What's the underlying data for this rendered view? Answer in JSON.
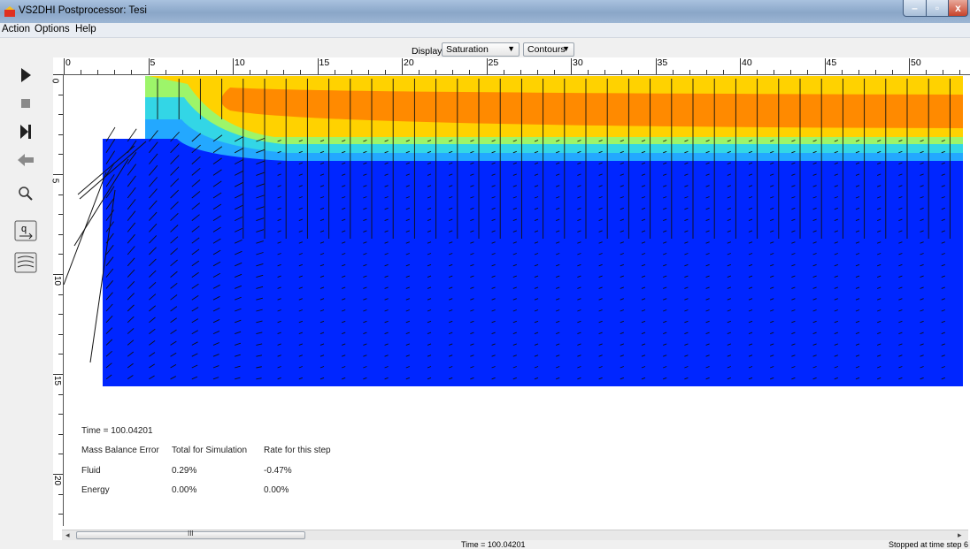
{
  "window": {
    "title": "VS2DHI Postprocessor: Tesi",
    "minimize_glyph": "–",
    "maximize_glyph": "▫",
    "close_glyph": "x"
  },
  "menubar": {
    "items": [
      "Action",
      "Options",
      "Help"
    ]
  },
  "controls": {
    "display_label": "Display:",
    "display_value": "Saturation",
    "mode_value": "Contours"
  },
  "toolbar": {
    "tools": [
      "play-icon",
      "stop-icon",
      "step-forward-icon",
      "rewind-icon",
      "zoom-icon",
      "vector-icon",
      "contour-icon"
    ],
    "colors": {
      "active": "#202020",
      "disabled": "#8a8a8a"
    }
  },
  "ruler": {
    "x_labels": [
      "0",
      "5",
      "10",
      "15",
      "20",
      "25",
      "30",
      "35",
      "40",
      "45",
      "50"
    ],
    "y_labels": [
      "0",
      "5",
      "10",
      "15",
      "20"
    ]
  },
  "plot": {
    "colors": {
      "saturated": "#0026ff",
      "band_orange": "#ff8a00",
      "band_yellow": "#ffd200",
      "band_cyan": "#33d6e6"
    }
  },
  "stats": {
    "time": "Time = 100.04201",
    "header_label": "Mass Balance Error",
    "header_total": "Total for Simulation",
    "header_rate": "Rate for this step",
    "fluid_label": "Fluid",
    "fluid_total": "0.29%",
    "fluid_rate": "-0.47%",
    "energy_label": "Energy",
    "energy_total": "0.00%",
    "energy_rate": "0.00%"
  },
  "scrollbar": {
    "grip": "III",
    "left_arrow": "◂",
    "right_arrow": "▸"
  },
  "statusbar": {
    "time": "Time = 100.04201",
    "message": "Stopped at time step 6"
  }
}
